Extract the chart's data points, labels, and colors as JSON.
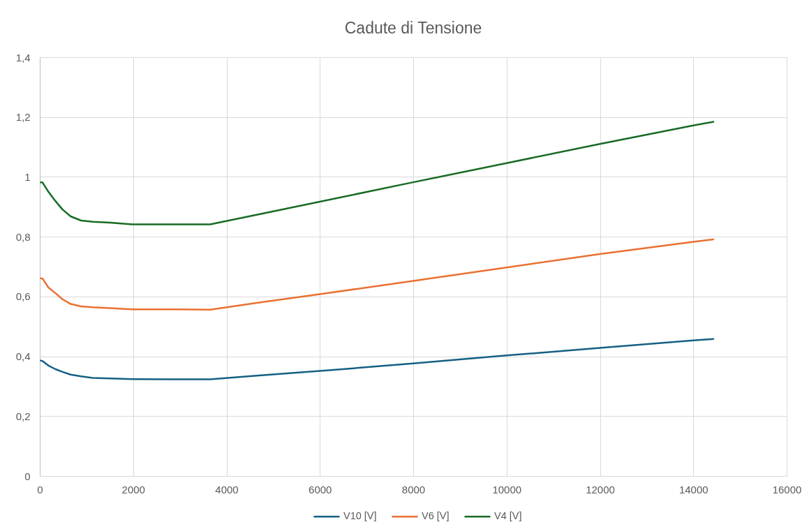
{
  "chart_data": {
    "type": "line",
    "title": "Cadute di Tensione",
    "x": [
      20,
      60,
      185,
      336,
      486,
      661,
      885,
      1133,
      1500,
      1981,
      2800,
      3650,
      4700,
      6000,
      8000,
      10000,
      12000,
      14000,
      14430
    ],
    "series": [
      {
        "name": "V10 [V]",
        "color": "#156082",
        "values": [
          0.386,
          0.384,
          0.369,
          0.357,
          0.348,
          0.339,
          0.333,
          0.328,
          0.326,
          0.324,
          0.323,
          0.323,
          0.336,
          0.351,
          0.376,
          0.403,
          0.428,
          0.453,
          0.458
        ]
      },
      {
        "name": "V6 [V]",
        "color": "#e97132",
        "values": [
          0.661,
          0.66,
          0.63,
          0.611,
          0.591,
          0.575,
          0.567,
          0.564,
          0.561,
          0.557,
          0.557,
          0.556,
          0.58,
          0.608,
          0.652,
          0.697,
          0.742,
          0.783,
          0.791
        ]
      },
      {
        "name": "V4 [V]",
        "color": "#196b24",
        "values": [
          0.982,
          0.981,
          0.95,
          0.919,
          0.891,
          0.868,
          0.854,
          0.85,
          0.847,
          0.841,
          0.841,
          0.841,
          0.875,
          0.917,
          0.982,
          1.046,
          1.11,
          1.172,
          1.184
        ]
      }
    ],
    "xlim": [
      0,
      16000
    ],
    "xticks": [
      0,
      2000,
      4000,
      6000,
      8000,
      10000,
      12000,
      14000,
      16000
    ],
    "ylim": [
      0,
      1.4
    ],
    "yticks": [
      0,
      {
        "value": 0.2,
        "label": "0,2"
      },
      {
        "value": 0.4,
        "label": "0,4"
      },
      {
        "value": 0.6,
        "label": "0,6"
      },
      {
        "value": 0.8,
        "label": "0,8"
      },
      1,
      {
        "value": 1.2,
        "label": "1,2"
      },
      {
        "value": 1.4,
        "label": "1,4"
      }
    ],
    "grid": true,
    "legend": "bottom",
    "line_style": "solid"
  }
}
